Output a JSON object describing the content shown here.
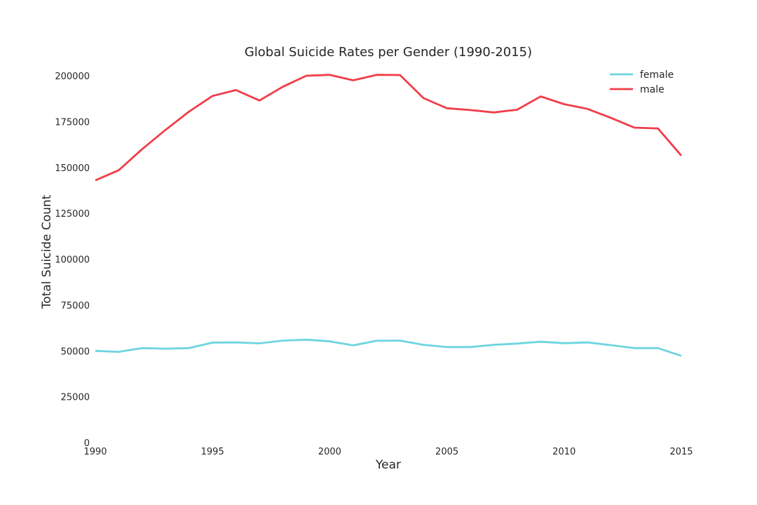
{
  "chart_data": {
    "type": "line",
    "title": "Global Suicide Rates per Gender (1990-2015)",
    "xlabel": "Year",
    "ylabel": "Total Suicide Count",
    "xlim": [
      1990,
      2015
    ],
    "ylim": [
      0,
      200000
    ],
    "xticks": [
      1990,
      1995,
      2000,
      2005,
      2010,
      2015
    ],
    "yticks": [
      0,
      25000,
      50000,
      75000,
      100000,
      125000,
      150000,
      175000,
      200000
    ],
    "grid": false,
    "legend_position": "top-right",
    "x": [
      1990,
      1991,
      1992,
      1993,
      1994,
      1995,
      1996,
      1997,
      1998,
      1999,
      2000,
      2001,
      2002,
      2003,
      2004,
      2005,
      2006,
      2007,
      2008,
      2009,
      2010,
      2011,
      2012,
      2013,
      2014,
      2015
    ],
    "series": [
      {
        "name": "female",
        "color": "#6dd5e0",
        "values": [
          50000,
          49500,
          51500,
          51200,
          51500,
          54500,
          54600,
          54100,
          55600,
          56100,
          55200,
          53000,
          55500,
          55600,
          53300,
          52100,
          52100,
          53300,
          54000,
          55000,
          54200,
          54600,
          53100,
          51500,
          51500,
          47300
        ]
      },
      {
        "name": "male",
        "color": "#f03e4a",
        "values": [
          143000,
          148500,
          160000,
          170500,
          180500,
          189000,
          192200,
          186500,
          194000,
          200000,
          200500,
          197500,
          200500,
          200400,
          187800,
          182300,
          181300,
          180000,
          181500,
          188700,
          184500,
          181900,
          177000,
          171700,
          171300,
          156500
        ]
      }
    ]
  }
}
